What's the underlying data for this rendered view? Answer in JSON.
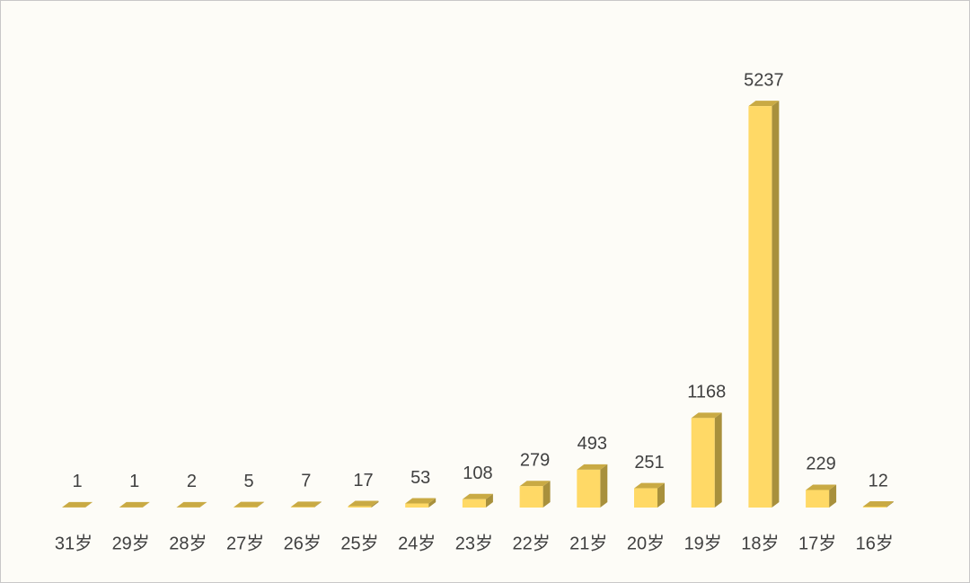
{
  "chart_data": {
    "type": "bar3d",
    "categories": [
      "31岁",
      "29岁",
      "28岁",
      "27岁",
      "26岁",
      "25岁",
      "24岁",
      "23岁",
      "22岁",
      "21岁",
      "20岁",
      "19岁",
      "18岁",
      "17岁",
      "16岁"
    ],
    "values": [
      1,
      1,
      2,
      5,
      7,
      17,
      53,
      108,
      279,
      493,
      251,
      1168,
      5237,
      229,
      12
    ],
    "color": "#ffd966",
    "ylim": [
      0,
      6000
    ]
  }
}
